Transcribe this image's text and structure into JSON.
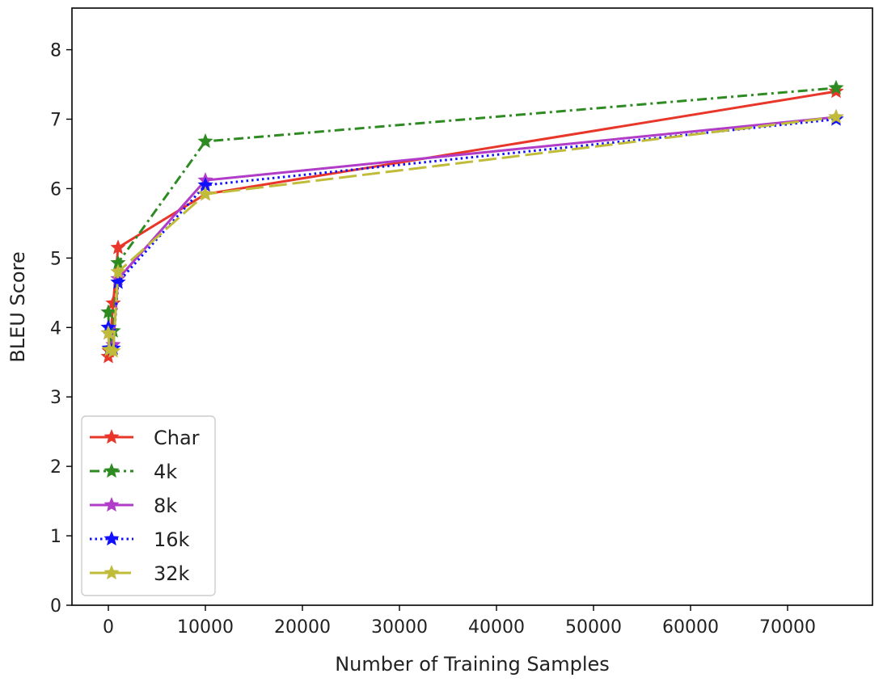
{
  "chart_data": {
    "type": "line",
    "title": "",
    "xlabel": "Number of Training Samples",
    "ylabel": "BLEU Score",
    "xlim": [
      -3750,
      78750
    ],
    "ylim": [
      0,
      8.6
    ],
    "x_ticks": [
      0,
      10000,
      20000,
      30000,
      40000,
      50000,
      60000,
      70000
    ],
    "y_ticks": [
      0,
      1,
      2,
      3,
      4,
      5,
      6,
      7,
      8
    ],
    "grid": false,
    "legend_position": "lower-left",
    "series": [
      {
        "name": "Char",
        "color": "#e8372a",
        "linestyle": "solid",
        "marker": "star",
        "x": [
          0,
          100,
          500,
          1000,
          10000,
          75000
        ],
        "y": [
          3.58,
          3.66,
          4.35,
          5.15,
          5.92,
          7.4
        ]
      },
      {
        "name": "4k",
        "color": "#2e8b22",
        "linestyle": "dashdot",
        "marker": "star",
        "x": [
          0,
          100,
          500,
          1000,
          10000,
          75000
        ],
        "y": [
          4.22,
          3.68,
          3.95,
          4.93,
          6.68,
          7.45
        ]
      },
      {
        "name": "8k",
        "color": "#b03cc8",
        "linestyle": "solid",
        "marker": "star",
        "x": [
          0,
          100,
          500,
          1000,
          10000,
          75000
        ],
        "y": [
          3.92,
          3.68,
          3.75,
          4.7,
          6.12,
          7.03
        ]
      },
      {
        "name": "16k",
        "color": "#1010ff",
        "linestyle": "dotted",
        "marker": "star",
        "x": [
          0,
          100,
          500,
          1000,
          10000,
          75000
        ],
        "y": [
          4.0,
          3.7,
          3.7,
          4.65,
          6.05,
          7.0
        ]
      },
      {
        "name": "32k",
        "color": "#c0bc3a",
        "linestyle": "longdash",
        "marker": "star",
        "x": [
          0,
          100,
          500,
          1000,
          10000,
          75000
        ],
        "y": [
          3.92,
          3.68,
          3.66,
          4.8,
          5.92,
          7.03
        ]
      }
    ]
  }
}
